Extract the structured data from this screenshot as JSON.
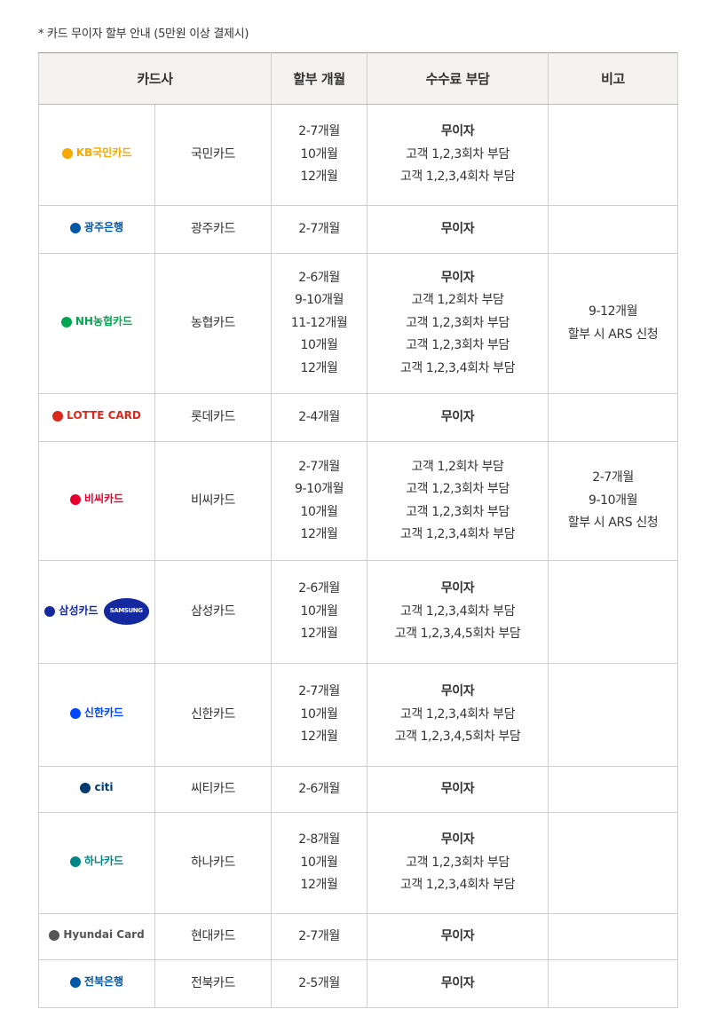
{
  "note": "* 카드 무이자 할부 안내 (5만원 이상 결제시)",
  "headers": {
    "card": "카드사",
    "months": "할부 개월",
    "fee": "수수료 부담",
    "remark": "비고"
  },
  "rows": [
    {
      "logo_text": "KB국민카드",
      "logo_color": "#f5a800",
      "name": "국민카드",
      "months": [
        "2-7개월",
        "10개월",
        "12개월"
      ],
      "fee": [
        "무이자",
        "고객 1,2,3회차 부담",
        "고객 1,2,3,4회차 부담"
      ],
      "remark": []
    },
    {
      "logo_text": "광주은행",
      "logo_color": "#0057a8",
      "name": "광주카드",
      "months": [
        "2-7개월"
      ],
      "fee": [
        "무이자"
      ],
      "remark": []
    },
    {
      "logo_text": "NH농협카드",
      "logo_color": "#00a650",
      "name": "농협카드",
      "months": [
        "2-6개월",
        "9-10개월",
        "11-12개월",
        "10개월",
        "12개월"
      ],
      "fee": [
        "무이자",
        "고객 1,2회차 부담",
        "고객 1,2,3회차 부담",
        "고객 1,2,3회차 부담",
        "고객 1,2,3,4회차 부담"
      ],
      "remark": [
        "9-12개월",
        "할부 시 ARS 신청"
      ]
    },
    {
      "logo_text": "LOTTE CARD",
      "logo_color": "#da291c",
      "name": "롯데카드",
      "months": [
        "2-4개월"
      ],
      "fee": [
        "무이자"
      ],
      "remark": []
    },
    {
      "logo_text": "비씨카드",
      "logo_color": "#e4002b",
      "name": "비씨카드",
      "months": [
        "2-7개월",
        "9-10개월",
        "10개월",
        "12개월"
      ],
      "fee": [
        "고객 1,2회차 부담",
        "고객 1,2,3회차 부담",
        "고객 1,2,3회차 부담",
        "고객 1,2,3,4회차 부담"
      ],
      "remark": [
        "2-7개월",
        "9-10개월",
        "할부 시 ARS 신청"
      ]
    },
    {
      "logo_text": "삼성카드",
      "logo_sub": "SAMSUNG",
      "logo_color": "#1428a0",
      "name": "삼성카드",
      "months": [
        "2-6개월",
        "10개월",
        "12개월"
      ],
      "fee": [
        "무이자",
        "고객 1,2,3,4회차 부담",
        "고객 1,2,3,4,5회차 부담"
      ],
      "remark": []
    },
    {
      "logo_text": "신한카드",
      "logo_color": "#0046ff",
      "name": "신한카드",
      "months": [
        "2-7개월",
        "10개월",
        "12개월"
      ],
      "fee": [
        "무이자",
        "고객 1,2,3,4회차 부담",
        "고객 1,2,3,4,5회차 부담"
      ],
      "remark": []
    },
    {
      "logo_text": "citi",
      "logo_color": "#003b70",
      "name": "씨티카드",
      "months": [
        "2-6개월"
      ],
      "fee": [
        "무이자"
      ],
      "remark": []
    },
    {
      "logo_text": "하나카드",
      "logo_color": "#008485",
      "name": "하나카드",
      "months": [
        "2-8개월",
        "10개월",
        "12개월"
      ],
      "fee": [
        "무이자",
        "고객 1,2,3회차 부담",
        "고객 1,2,3,4회차 부담"
      ],
      "remark": []
    },
    {
      "logo_text": "Hyundai Card",
      "logo_color": "#555555",
      "name": "현대카드",
      "months": [
        "2-7개월"
      ],
      "fee": [
        "무이자"
      ],
      "remark": []
    },
    {
      "logo_text": "전북은행",
      "logo_color": "#0057a8",
      "name": "전북카드",
      "months": [
        "2-5개월"
      ],
      "fee": [
        "무이자"
      ],
      "remark": []
    }
  ]
}
